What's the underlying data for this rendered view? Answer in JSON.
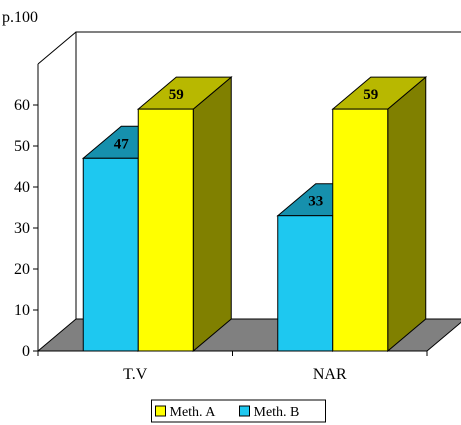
{
  "chart_data": {
    "type": "bar",
    "style": "3d-clustered",
    "unit_label": "p.100",
    "categories": [
      "T.V",
      "NAR"
    ],
    "series": [
      {
        "name": "Meth. B",
        "values": [
          47,
          33
        ],
        "color": "#1ec8f0"
      },
      {
        "name": "Meth. A",
        "values": [
          59,
          59
        ],
        "color": "#ffff00"
      }
    ],
    "ylim": [
      0,
      70
    ],
    "yticks": [
      0,
      10,
      20,
      30,
      40,
      50,
      60
    ],
    "legend_position": "bottom",
    "floor_color": "#808080",
    "grid": false
  }
}
